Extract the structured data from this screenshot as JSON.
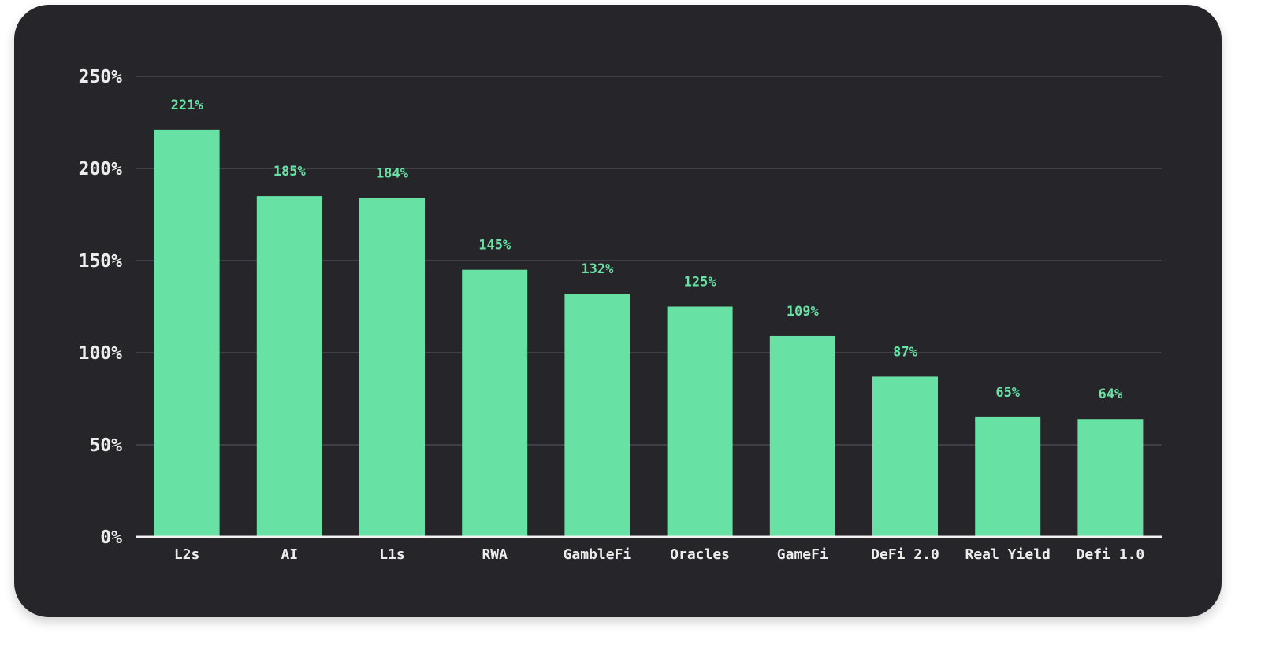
{
  "colors": {
    "background": "#25252a",
    "bar": "#68e2a4",
    "data_label": "#68e2a4",
    "grid": "#3f3f45",
    "axis": "#f2f2f2",
    "text": "#ececec"
  },
  "chart_data": {
    "type": "bar",
    "title": "",
    "xlabel": "",
    "ylabel": "",
    "categories": [
      "L2s",
      "AI",
      "L1s",
      "RWA",
      "GambleFi",
      "Oracles",
      "GameFi",
      "DeFi 2.0",
      "Real Yield",
      "Defi 1.0"
    ],
    "values": [
      221,
      185,
      184,
      145,
      132,
      125,
      109,
      87,
      65,
      64
    ],
    "data_labels": [
      "221%",
      "185%",
      "184%",
      "145%",
      "132%",
      "125%",
      "109%",
      "87%",
      "65%",
      "64%"
    ],
    "ylim": [
      0,
      250
    ],
    "yticks": [
      0,
      50,
      100,
      150,
      200,
      250
    ],
    "ytick_labels": [
      "0%",
      "50%",
      "100%",
      "150%",
      "200%",
      "250%"
    ],
    "grid": true,
    "legend": "none"
  }
}
